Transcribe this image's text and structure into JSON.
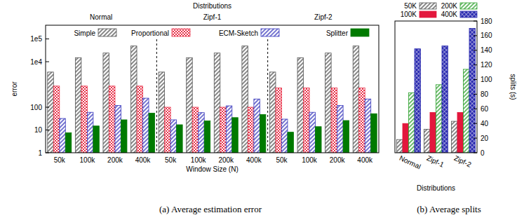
{
  "chart_data": [
    {
      "type": "bar",
      "title": "Distributions",
      "groups": [
        "Normal",
        "Zipf-1",
        "Zipf-2"
      ],
      "categories": [
        "50k",
        "100k",
        "200k",
        "400k",
        "50k",
        "100k",
        "200k",
        "400k",
        "50k",
        "100k",
        "200k",
        "400k"
      ],
      "x_label": "Window Size (N)",
      "y_label": "error",
      "caption": "(a) Average estimation error",
      "log": "y",
      "ylim": [
        1,
        400000
      ],
      "yticks": [
        1,
        10,
        100,
        {
          "value": 10000,
          "label": "1e4"
        },
        {
          "value": 100000,
          "label": "1e5"
        }
      ],
      "legend": "top",
      "series": [
        {
          "name": "Simple",
          "color": "#555555",
          "values": [
            3500,
            15000,
            24000,
            49000,
            3500,
            15000,
            24000,
            49000,
            3500,
            15000,
            24000,
            49000
          ]
        },
        {
          "name": "Proportional",
          "color": "#e8334a",
          "values": [
            850,
            850,
            850,
            850,
            100,
            100,
            100,
            100,
            700,
            700,
            700,
            700
          ]
        },
        {
          "name": "ECM-Sketch",
          "color": "#3b3bbd",
          "values": [
            32,
            60,
            120,
            250,
            28,
            58,
            115,
            230,
            30,
            60,
            120,
            230
          ]
        },
        {
          "name": "Splitter",
          "color": "#007a00",
          "values": [
            7.5,
            15,
            28,
            55,
            17,
            25,
            35,
            48,
            8,
            14,
            26,
            52
          ]
        }
      ]
    },
    {
      "type": "bar",
      "categories": [
        "Normal",
        "Zipf-1",
        "Zipf-2"
      ],
      "x_label": "Distributions",
      "y_label": "splits (s)",
      "caption": "(b) Average splits",
      "ylim": [
        0,
        180
      ],
      "yticks": [
        0,
        20,
        40,
        60,
        80,
        100,
        120,
        140,
        160,
        180
      ],
      "legend": "top",
      "series": [
        {
          "name": "50K",
          "color": "#555555",
          "values": [
            18,
            32,
            43
          ]
        },
        {
          "name": "100K",
          "color": "#e3173d",
          "values": [
            40,
            55,
            55
          ]
        },
        {
          "name": "200K",
          "color": "#2ca02c",
          "values": [
            82,
            93,
            114
          ]
        },
        {
          "name": "400K",
          "color": "#2b2bb0",
          "values": [
            142,
            146,
            170
          ]
        }
      ]
    }
  ]
}
